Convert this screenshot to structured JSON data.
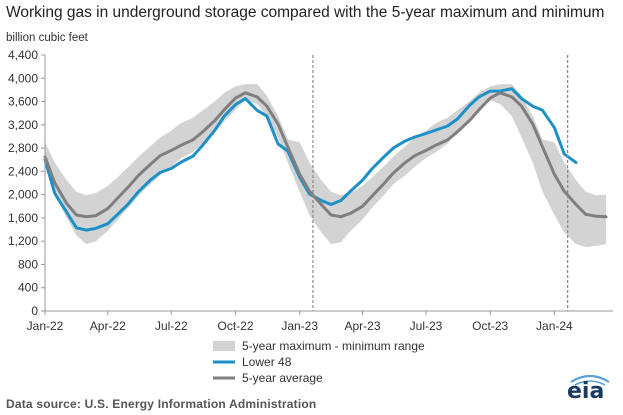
{
  "title": "Working gas in underground  storage compared with the 5-year maximum and minimum",
  "unit_label": "billion cubic feet",
  "source": "Data source:  U.S. Energy Information Administration",
  "logo": "eia",
  "colors": {
    "range": "#d3d3d3",
    "lower48": "#1e90c8",
    "avg": "#7f7f7f",
    "axis": "#999999",
    "gridline": "#cccccc"
  },
  "chart_data": {
    "type": "line",
    "title": "Working gas in underground  storage compared with the 5-year maximum and minimum",
    "ylabel": "billion cubic feet",
    "xlabel": "",
    "ylim": [
      0,
      4400
    ],
    "yticks": [
      0,
      400,
      800,
      1200,
      1600,
      2000,
      2400,
      2800,
      3200,
      3600,
      4000,
      4400
    ],
    "ytick_labels": [
      "0",
      "400",
      "800",
      "1,200",
      "1,600",
      "2,000",
      "2,400",
      "2,800",
      "3,200",
      "3,600",
      "4,000",
      "4,400"
    ],
    "xtick_labels": [
      "Jan-22",
      "Apr-22",
      "Jul-22",
      "Oct-22",
      "Jan-23",
      "Apr-23",
      "Jul-23",
      "Oct-23",
      "Jan-24"
    ],
    "xticks": [
      "2022-01",
      "2022-04",
      "2022-07",
      "2022-10",
      "2023-01",
      "2023-04",
      "2023-07",
      "2023-10",
      "2024-01"
    ],
    "x": [
      "2022-01",
      "2022-01-15",
      "2022-02",
      "2022-02-15",
      "2022-03",
      "2022-03-15",
      "2022-04",
      "2022-04-15",
      "2022-05",
      "2022-05-15",
      "2022-06",
      "2022-06-15",
      "2022-07",
      "2022-07-15",
      "2022-08",
      "2022-08-15",
      "2022-09",
      "2022-09-15",
      "2022-10",
      "2022-10-15",
      "2022-11",
      "2022-11-15",
      "2022-12",
      "2022-12-15",
      "2023-01",
      "2023-01-15",
      "2023-02",
      "2023-02-15",
      "2023-03",
      "2023-03-15",
      "2023-04",
      "2023-04-15",
      "2023-05",
      "2023-05-15",
      "2023-06",
      "2023-06-15",
      "2023-07",
      "2023-07-15",
      "2023-08",
      "2023-08-15",
      "2023-09",
      "2023-09-15",
      "2023-10",
      "2023-10-15",
      "2023-11",
      "2023-11-15",
      "2023-12",
      "2023-12-15",
      "2024-01",
      "2024-01-15",
      "2024-02",
      "2024-02-15",
      "2024-03",
      "2024-03-15"
    ],
    "series": [
      {
        "name": "5-year maximum - minimum range",
        "kind": "band",
        "upper": [
          2900,
          2550,
          2250,
          2050,
          1990,
          2030,
          2150,
          2300,
          2480,
          2650,
          2830,
          2980,
          3100,
          3230,
          3320,
          3450,
          3600,
          3750,
          3860,
          3900,
          3900,
          3700,
          3350,
          2950,
          2900,
          2550,
          2250,
          2050,
          1990,
          2030,
          2150,
          2300,
          2480,
          2650,
          2830,
          2980,
          3100,
          3230,
          3320,
          3450,
          3600,
          3750,
          3860,
          3900,
          3900,
          3700,
          3350,
          2950,
          2900,
          2550,
          2250,
          2050,
          1990,
          2000
        ],
        "lower": [
          2500,
          2000,
          1600,
          1300,
          1150,
          1200,
          1380,
          1570,
          1780,
          1980,
          2180,
          2330,
          2480,
          2630,
          2730,
          2880,
          3060,
          3260,
          3460,
          3620,
          3560,
          3350,
          2980,
          2550,
          2050,
          1650,
          1350,
          1150,
          1180,
          1380,
          1570,
          1780,
          1980,
          2180,
          2330,
          2480,
          2630,
          2730,
          2880,
          3060,
          3260,
          3460,
          3620,
          3560,
          3350,
          2980,
          2550,
          2050,
          1650,
          1350,
          1150,
          1100,
          1120,
          1150
        ]
      },
      {
        "name": "Lower 48",
        "kind": "line",
        "values": [
          2600,
          2020,
          1700,
          1430,
          1390,
          1420,
          1500,
          1660,
          1850,
          2050,
          2250,
          2380,
          2450,
          2560,
          2660,
          2850,
          3100,
          3350,
          3550,
          3650,
          3450,
          3350,
          2870,
          2750,
          2300,
          2010,
          1900,
          1830,
          1900,
          2060,
          2250,
          2450,
          2640,
          2800,
          2920,
          2990,
          3050,
          3110,
          3180,
          3300,
          3530,
          3680,
          3780,
          3780,
          3820,
          3650,
          3520,
          3450,
          3150,
          2700,
          2550,
          null,
          null,
          null
        ]
      },
      {
        "name": "5-year average",
        "kind": "line",
        "values": [
          2650,
          2200,
          1850,
          1650,
          1620,
          1640,
          1760,
          1940,
          2140,
          2330,
          2520,
          2670,
          2760,
          2850,
          2940,
          3080,
          3270,
          3460,
          3660,
          3750,
          3680,
          3520,
          3210,
          2820,
          2350,
          2060,
          1830,
          1650,
          1620,
          1680,
          1800,
          1980,
          2180,
          2370,
          2550,
          2670,
          2760,
          2850,
          2940,
          3080,
          3270,
          3460,
          3660,
          3750,
          3680,
          3520,
          3210,
          2820,
          2350,
          2060,
          1830,
          1660,
          1630,
          1620
        ]
      }
    ],
    "markers": [
      "2023-01-20",
      "2024-01-20"
    ],
    "legend": {
      "position": "bottom-center",
      "entries": [
        "5-year maximum - minimum range",
        "Lower 48",
        "5-year average"
      ]
    },
    "grid": false
  }
}
